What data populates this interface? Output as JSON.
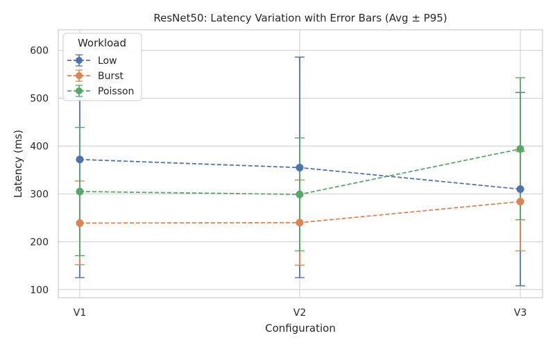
{
  "chart_data": {
    "type": "line",
    "title": "ResNet50: Latency Variation with Error Bars (Avg ± P95)",
    "xlabel": "Configuration",
    "ylabel": "Latency (ms)",
    "categories": [
      "V1",
      "V2",
      "V3"
    ],
    "ylim": [
      83,
      643
    ],
    "yticks": [
      100,
      200,
      300,
      400,
      500,
      600
    ],
    "grid": true,
    "legend": {
      "title": "Workload",
      "placement": "top-left"
    },
    "series": [
      {
        "name": "Low",
        "color": "#4c72b0",
        "values": [
          372,
          355,
          310
        ],
        "err_low": [
          125,
          125,
          108
        ],
        "err_high": [
          590,
          586,
          512
        ]
      },
      {
        "name": "Burst",
        "color": "#dd8452",
        "values": [
          239,
          240,
          284
        ],
        "err_low": [
          152,
          151,
          181
        ],
        "err_high": [
          327,
          329,
          389
        ]
      },
      {
        "name": "Poisson",
        "color": "#55a868",
        "values": [
          305,
          299,
          394
        ],
        "err_low": [
          171,
          181,
          246
        ],
        "err_high": [
          439,
          417,
          543
        ]
      }
    ]
  }
}
